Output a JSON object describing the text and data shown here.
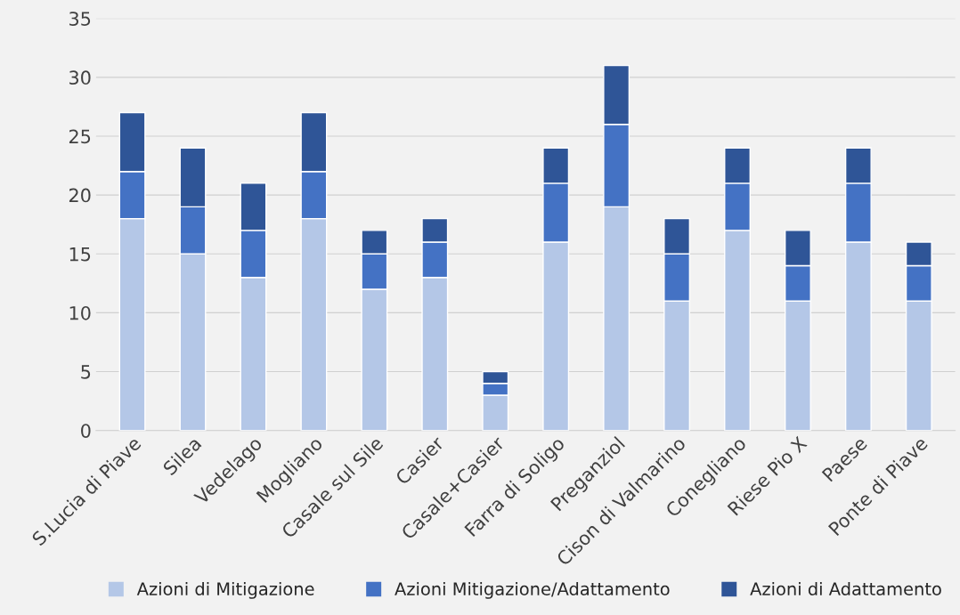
{
  "chart_data": {
    "type": "bar",
    "stacked": true,
    "categories": [
      "S.Lucia di Piave",
      "Silea",
      "Vedelago",
      "Mogliano",
      "Casale sul Sile",
      "Casier",
      "Casale+Casier",
      "Farra di Soligo",
      "Preganziol",
      "Cison di Valmarino",
      "Conegliano",
      "Riese Pio X",
      "Paese",
      "Ponte di Piave"
    ],
    "series": [
      {
        "name": "Azioni di Mitigazione",
        "color": "#b4c7e7",
        "values": [
          18,
          15,
          13,
          18,
          12,
          13,
          3,
          16,
          19,
          11,
          17,
          11,
          16,
          11
        ]
      },
      {
        "name": "Azioni Mitigazione/Adattamento",
        "color": "#4472c4",
        "values": [
          4,
          4,
          4,
          4,
          3,
          3,
          1,
          5,
          7,
          4,
          4,
          3,
          5,
          3
        ]
      },
      {
        "name": "Azioni di Adattamento",
        "color": "#2f5597",
        "values": [
          5,
          5,
          4,
          5,
          2,
          2,
          1,
          3,
          5,
          3,
          3,
          3,
          3,
          2
        ]
      }
    ],
    "ylim": [
      0,
      35
    ],
    "yticks": [
      0,
      5,
      10,
      15,
      20,
      25,
      30,
      35
    ],
    "grid": "y",
    "legend": "bottom"
  }
}
